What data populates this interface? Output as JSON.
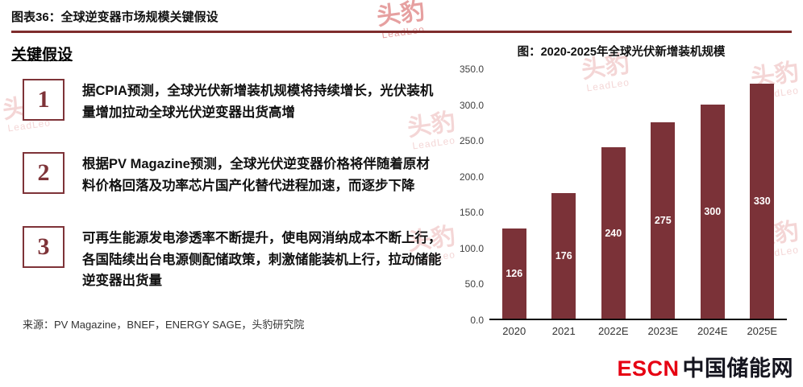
{
  "header": {
    "title": "图表36：全球逆变器市场规模关键假设"
  },
  "left": {
    "section_title": "关键假设",
    "assumptions": [
      {
        "num": "1",
        "text": "据CPIA预测，全球光伏新增装机规模将持续增长，光伏装机量增加拉动全球光伏逆变器出货高增"
      },
      {
        "num": "2",
        "text": "根据PV Magazine预测，全球光伏逆变器价格将伴随着原材料价格回落及功率芯片国产化替代进程加速，而逐步下降"
      },
      {
        "num": "3",
        "text": "可再生能源发电渗透率不断提升，使电网消纳成本不断上行，各国陆续出台电源侧配储政策，刺激储能装机上行，拉动储能逆变器出货量"
      }
    ],
    "source": "来源：PV Magazine，BNEF，ENERGY SAGE，头豹研究院"
  },
  "chart_data": {
    "type": "bar",
    "title": "图：2020-2025年全球光伏新增装机规模",
    "categories": [
      "2020",
      "2021",
      "2022E",
      "2023E",
      "2024E",
      "2025E"
    ],
    "values": [
      126,
      176,
      240,
      275,
      300,
      330
    ],
    "xlabel": "",
    "ylabel": "",
    "ylim": [
      0,
      350
    ],
    "ytick_step": 50,
    "grid": false,
    "legend": false,
    "bar_color": "#7B3238",
    "value_label_color": "#FFFFFF"
  },
  "footer_logo": {
    "escn": "ESCN",
    "cn": "中国储能网"
  },
  "watermark": {
    "cn": "头豹",
    "en": "LeadLeo"
  }
}
